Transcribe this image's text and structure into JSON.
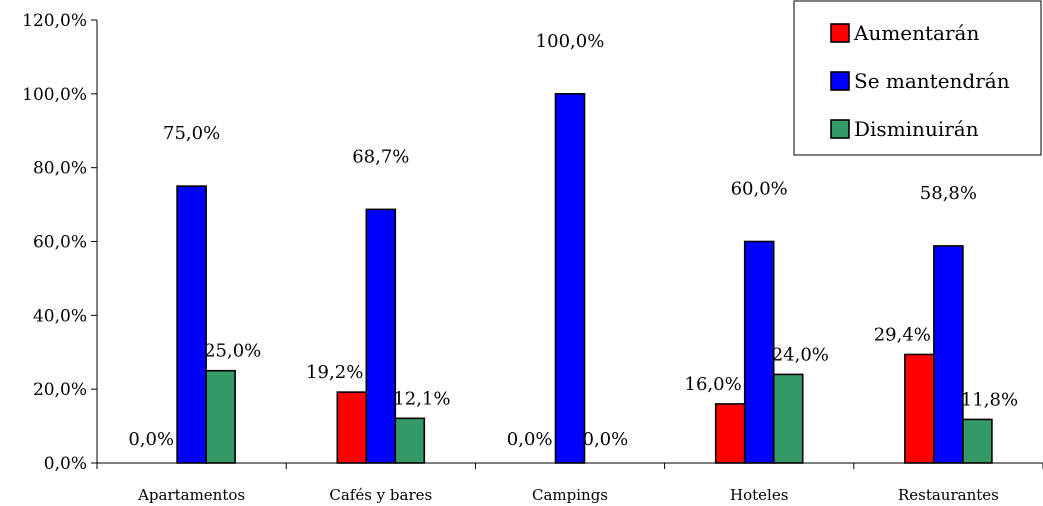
{
  "chart_data": {
    "type": "bar",
    "categories": [
      "Apartamentos",
      "Cafés y bares",
      "Campings",
      "Hoteles",
      "Restaurantes"
    ],
    "series": [
      {
        "name": "Aumentarán",
        "color": "#ff0000",
        "values": [
          0.0,
          19.2,
          0.0,
          16.0,
          29.4
        ],
        "labels": [
          "0,0%",
          "19,2%",
          "0,0%",
          "16,0%",
          "29,4%"
        ]
      },
      {
        "name": "Se mantendrán",
        "color": "#0000ff",
        "values": [
          75.0,
          68.7,
          100.0,
          60.0,
          58.8
        ],
        "labels": [
          "75,0%",
          "68,7%",
          "100,0%",
          "60,0%",
          "58,8%"
        ]
      },
      {
        "name": "Disminuirán",
        "color": "#339966",
        "values": [
          25.0,
          12.1,
          0.0,
          24.0,
          11.8
        ],
        "labels": [
          "25,0%",
          "12,1%",
          "0,0%",
          "24,0%",
          "11,8%"
        ]
      }
    ],
    "yticks": [
      "0,0%",
      "20,0%",
      "40,0%",
      "60,0%",
      "80,0%",
      "100,0%",
      "120,0%"
    ],
    "ylim": [
      0,
      120
    ],
    "grid": false,
    "legend_position": "top-right"
  }
}
